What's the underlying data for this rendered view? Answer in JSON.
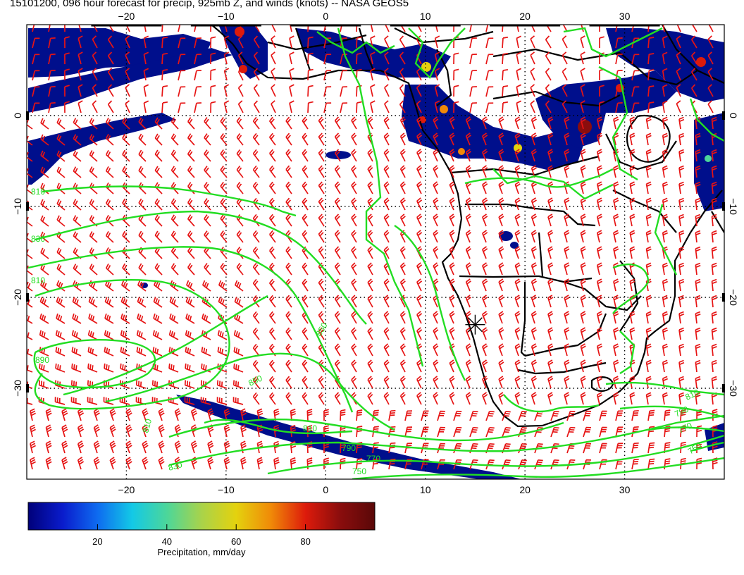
{
  "title": "15101200, 096 hour forecast for precip, 925mb Z, and winds (knots) -- NASA GEOS5",
  "map": {
    "lon_range": [
      -30,
      40
    ],
    "lat_range": [
      -40,
      10
    ],
    "lon_ticks": [
      -20,
      -10,
      0,
      10,
      20,
      30
    ],
    "lat_ticks": [
      0,
      -10,
      -20,
      -30
    ],
    "lon_tick_labels": [
      "−20",
      "−10",
      "0",
      "10",
      "20",
      "30"
    ],
    "lat_tick_labels": [
      "0",
      "−10",
      "−20",
      "−30"
    ],
    "graticule": "dotted",
    "precip_color": "#000f8c",
    "contour_color": "#22dd22",
    "barb_color": "#e61414",
    "coast_color": "#000000",
    "marker_lon": 15,
    "marker_lat": -23
  },
  "contours": [
    {
      "label": "810"
    },
    {
      "label": "830"
    },
    {
      "label": "810"
    },
    {
      "label": "890"
    },
    {
      "label": "810"
    },
    {
      "label": "850"
    },
    {
      "label": "850"
    },
    {
      "label": "810"
    },
    {
      "label": "790"
    },
    {
      "label": "770"
    },
    {
      "label": "750"
    },
    {
      "label": "830"
    },
    {
      "label": "810"
    },
    {
      "label": "790"
    },
    {
      "label": "770"
    },
    {
      "label": "750"
    }
  ],
  "colorbar": {
    "ticks": [
      20,
      40,
      60,
      80
    ],
    "tick_labels": [
      "20",
      "40",
      "60",
      "80"
    ],
    "range": [
      0,
      100
    ],
    "label": "Precipitation, mm/day",
    "colors": [
      "#00007a",
      "#0a1ccc",
      "#0e6bf0",
      "#13c9e6",
      "#4cd69a",
      "#a9d34a",
      "#e4d20e",
      "#f08a08",
      "#dd1b0b",
      "#8a0d0d",
      "#5a0808"
    ]
  }
}
